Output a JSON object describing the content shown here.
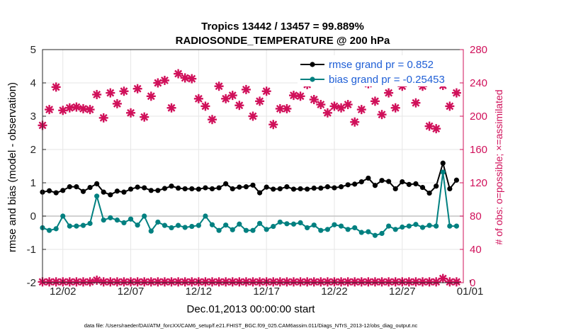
{
  "chart_data": {
    "type": "line",
    "title": "Tropics 13442 / 13457 = 99.889%",
    "subtitle": "RADIOSONDE_TEMPERATURE @ 200 hPa",
    "xlabel": "Dec.01,2013 00:00:00 start",
    "ylabel": "rmse and bias (model - observation)",
    "ylabel_right": "# of obs: o=possible; ×=assimilated",
    "footer": "data file: /Users/raeder/DAI/ATM_forcXX/CAM6_setup/f.e21.FHIST_BGC.f09_025.CAM6assim.011/Diags_NTrS_2013-12/obs_diag_output.nc",
    "xlim": [
      0.5,
      31.5
    ],
    "ylim": [
      -2,
      5
    ],
    "ylim_right": [
      0,
      280
    ],
    "x_ticks": [
      {
        "value": 2,
        "label": "12/02"
      },
      {
        "value": 7,
        "label": "12/07"
      },
      {
        "value": 12,
        "label": "12/12"
      },
      {
        "value": 17,
        "label": "12/17"
      },
      {
        "value": 22,
        "label": "12/22"
      },
      {
        "value": 27,
        "label": "12/27"
      },
      {
        "value": 32,
        "label": "01/01"
      }
    ],
    "y_ticks": [
      "-2",
      "-1",
      "0",
      "1",
      "2",
      "3",
      "4",
      "5"
    ],
    "y_ticks_right": [
      "0",
      "40",
      "80",
      "120",
      "160",
      "200",
      "240",
      "280"
    ],
    "x": [
      0.5,
      1.0,
      1.5,
      2.0,
      2.5,
      3.0,
      3.5,
      4.0,
      4.5,
      5.0,
      5.5,
      6.0,
      6.5,
      7.0,
      7.5,
      8.0,
      8.5,
      9.0,
      9.5,
      10.0,
      10.5,
      11.0,
      11.5,
      12.0,
      12.5,
      13.0,
      13.5,
      14.0,
      14.5,
      15.0,
      15.5,
      16.0,
      16.5,
      17.0,
      17.5,
      18.0,
      18.5,
      19.0,
      19.5,
      20.0,
      20.5,
      21.0,
      21.5,
      22.0,
      22.5,
      23.0,
      23.5,
      24.0,
      24.5,
      25.0,
      25.5,
      26.0,
      26.5,
      27.0,
      27.5,
      28.0,
      28.5,
      29.0,
      29.5,
      30.0,
      30.5,
      31.0,
      31.5
    ],
    "series": [
      {
        "name": "rmse grand pr = 0.852",
        "color": "#000000",
        "values": [
          0.72,
          0.76,
          0.7,
          0.77,
          0.88,
          0.88,
          0.74,
          0.86,
          0.97,
          0.72,
          0.64,
          0.75,
          0.72,
          0.81,
          0.87,
          0.85,
          0.77,
          0.77,
          0.83,
          0.9,
          0.84,
          0.82,
          0.82,
          0.81,
          0.85,
          0.82,
          0.85,
          0.97,
          0.82,
          0.87,
          0.88,
          0.93,
          0.7,
          0.87,
          0.81,
          0.82,
          0.88,
          0.81,
          0.82,
          0.81,
          0.84,
          0.84,
          0.88,
          0.85,
          0.88,
          0.94,
          0.96,
          1.03,
          1.14,
          0.92,
          1.07,
          1.04,
          0.82,
          1.03,
          0.95,
          0.97,
          0.86,
          0.69,
          0.9,
          1.59,
          0.82,
          1.08,
          null
        ]
      },
      {
        "name": "bias grand pr = -0.25453",
        "color": "#008080",
        "values": [
          -0.35,
          -0.43,
          -0.38,
          0.0,
          -0.3,
          -0.3,
          -0.28,
          -0.22,
          0.6,
          -0.12,
          -0.05,
          -0.12,
          -0.2,
          -0.09,
          -0.27,
          0.0,
          -0.45,
          -0.18,
          -0.28,
          -0.35,
          -0.28,
          -0.34,
          -0.31,
          -0.28,
          0.0,
          -0.26,
          -0.43,
          -0.27,
          -0.41,
          -0.24,
          -0.43,
          -0.43,
          -0.22,
          -0.4,
          -0.31,
          -0.18,
          -0.23,
          -0.24,
          -0.2,
          -0.35,
          -0.27,
          -0.43,
          -0.4,
          -0.26,
          -0.3,
          -0.4,
          -0.35,
          -0.49,
          -0.47,
          -0.58,
          -0.52,
          -0.3,
          -0.4,
          -0.33,
          -0.3,
          -0.25,
          -0.34,
          -0.28,
          -0.3,
          1.32,
          -0.3,
          -0.3,
          null
        ]
      },
      {
        "name": "obs possible",
        "color": "#d0105a",
        "axis": "right",
        "values": [
          189,
          208,
          235,
          207,
          210,
          211,
          209,
          208,
          226,
          198,
          228,
          215,
          230,
          204,
          233,
          199,
          224,
          240,
          243,
          210,
          251,
          246,
          245,
          221,
          212,
          196,
          236,
          221,
          225,
          213,
          232,
          200,
          218,
          230,
          190,
          209,
          209,
          225,
          224,
          238,
          220,
          214,
          204,
          212,
          210,
          214,
          193,
          208,
          239,
          218,
          202,
          228,
          210,
          236,
          244,
          216,
          236,
          188,
          185,
          237,
          212,
          228,
          null
        ]
      },
      {
        "name": "obs assimilated",
        "color": "#d0105a",
        "axis": "right",
        "values": [
          1,
          1,
          1,
          1,
          1,
          1,
          1,
          1,
          3,
          1,
          1,
          1,
          1,
          1,
          1,
          1,
          1,
          1,
          1,
          1,
          1,
          1,
          1,
          1,
          1,
          1,
          1,
          1,
          1,
          1,
          1,
          1,
          1,
          1,
          1,
          1,
          1,
          1,
          1,
          1,
          1,
          1,
          1,
          1,
          1,
          1,
          1,
          1,
          1,
          1,
          1,
          1,
          1,
          1,
          1,
          1,
          1,
          1,
          1,
          5,
          1,
          1,
          null
        ]
      }
    ],
    "legend": [
      {
        "label": "rmse grand pr = 0.852",
        "color": "#000000"
      },
      {
        "label": "bias grand pr = -0.25453",
        "color": "#008080"
      }
    ],
    "legend_placement": "top-right",
    "grid": true
  }
}
